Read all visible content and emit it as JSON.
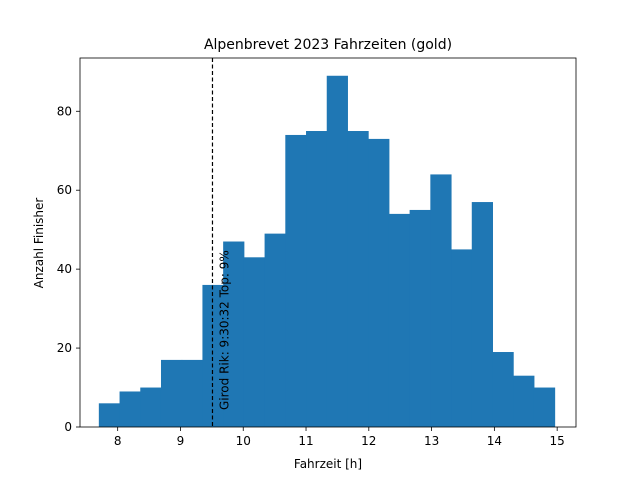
{
  "chart_data": {
    "type": "bar",
    "title": "Alpenbrevet 2023 Fahrzeiten (gold)",
    "xlabel": "Fahrzeit [h]",
    "ylabel": "Anzahl Finisher",
    "xlim": [
      7.4,
      15.3
    ],
    "ylim": [
      0,
      93.5
    ],
    "xticks": [
      8,
      9,
      10,
      11,
      12,
      13,
      14,
      15
    ],
    "yticks": [
      0,
      20,
      40,
      60,
      80
    ],
    "grid": false,
    "bar_color": "#1f77b4",
    "bins": [
      {
        "start": 7.7,
        "end": 8.03,
        "count": 6
      },
      {
        "start": 8.03,
        "end": 8.36,
        "count": 9
      },
      {
        "start": 8.36,
        "end": 8.69,
        "count": 10
      },
      {
        "start": 8.69,
        "end": 9.02,
        "count": 17
      },
      {
        "start": 9.02,
        "end": 9.35,
        "count": 17
      },
      {
        "start": 9.35,
        "end": 9.68,
        "count": 36
      },
      {
        "start": 9.68,
        "end": 10.01,
        "count": 47
      },
      {
        "start": 10.01,
        "end": 10.34,
        "count": 43
      },
      {
        "start": 10.34,
        "end": 10.67,
        "count": 49
      },
      {
        "start": 10.67,
        "end": 11.0,
        "count": 74
      },
      {
        "start": 11.0,
        "end": 11.33,
        "count": 75
      },
      {
        "start": 11.33,
        "end": 11.66,
        "count": 89
      },
      {
        "start": 11.66,
        "end": 11.99,
        "count": 75
      },
      {
        "start": 11.99,
        "end": 12.32,
        "count": 73
      },
      {
        "start": 12.32,
        "end": 12.65,
        "count": 54
      },
      {
        "start": 12.65,
        "end": 12.98,
        "count": 55
      },
      {
        "start": 12.98,
        "end": 13.31,
        "count": 64
      },
      {
        "start": 13.31,
        "end": 13.64,
        "count": 45
      },
      {
        "start": 13.64,
        "end": 13.97,
        "count": 57
      },
      {
        "start": 13.97,
        "end": 14.3,
        "count": 19
      },
      {
        "start": 14.3,
        "end": 14.63,
        "count": 13
      },
      {
        "start": 14.63,
        "end": 14.96,
        "count": 10
      }
    ],
    "marker": {
      "x": 9.51,
      "label": "Girod Rik: 9:30:32 Top: 9%",
      "style": "dashed",
      "color": "#000000"
    }
  }
}
